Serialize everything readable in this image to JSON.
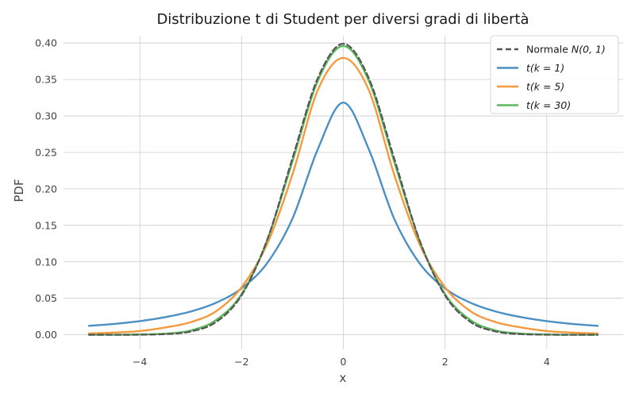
{
  "chart_data": {
    "type": "line",
    "title": "Distribuzione t di Student per diversi gradi di libertà",
    "xlabel": "x",
    "ylabel": "PDF",
    "xlim": [
      -5.5,
      5.5
    ],
    "ylim": [
      -0.02,
      0.41
    ],
    "x_ticks": [
      -4,
      -2,
      0,
      2,
      4
    ],
    "x_tick_labels": [
      "−4",
      "−2",
      "0",
      "2",
      "4"
    ],
    "y_ticks": [
      0.0,
      0.05,
      0.1,
      0.15,
      0.2,
      0.25,
      0.3,
      0.35,
      0.4
    ],
    "y_tick_labels": [
      "0.00",
      "0.05",
      "0.10",
      "0.15",
      "0.20",
      "0.25",
      "0.30",
      "0.35",
      "0.40"
    ],
    "grid": true,
    "legend_position": "top-right",
    "x": [
      -5,
      -4.5,
      -4,
      -3.5,
      -3,
      -2.5,
      -2,
      -1.5,
      -1,
      -0.5,
      0,
      0.5,
      1,
      1.5,
      2,
      2.5,
      3,
      3.5,
      4,
      4.5,
      5
    ],
    "series": [
      {
        "name": "Normale N(0, 1)",
        "legend_prefix": "Normale ",
        "legend_math": "N(0, 1)",
        "color": "#555555",
        "dash": true,
        "values": [
          1.5e-06,
          1.6e-05,
          0.000134,
          0.000873,
          0.004432,
          0.017528,
          0.053991,
          0.129518,
          0.241971,
          0.352065,
          0.398942,
          0.352065,
          0.241971,
          0.129518,
          0.053991,
          0.017528,
          0.004432,
          0.000873,
          0.000134,
          1.6e-05,
          1.5e-06
        ]
      },
      {
        "name": "t(k = 1)",
        "legend_prefix": "",
        "legend_math": "t(k = 1)",
        "color": "#4a90c2",
        "dash": false,
        "values": [
          0.012243,
          0.014909,
          0.018724,
          0.024157,
          0.031831,
          0.043905,
          0.063662,
          0.097942,
          0.159155,
          0.254648,
          0.31831,
          0.254648,
          0.159155,
          0.097942,
          0.063662,
          0.043905,
          0.031831,
          0.024157,
          0.018724,
          0.014909,
          0.012243
        ]
      },
      {
        "name": "t(k = 5)",
        "legend_prefix": "",
        "legend_math": "t(k = 5)",
        "color": "#f5993d",
        "dash": false,
        "values": [
          0.001758,
          0.003064,
          0.005124,
          0.009983,
          0.017292,
          0.032287,
          0.06509,
          0.124016,
          0.219711,
          0.335652,
          0.379607,
          0.335652,
          0.219711,
          0.124016,
          0.06509,
          0.032287,
          0.017292,
          0.009983,
          0.005124,
          0.003064,
          0.001758
        ]
      },
      {
        "name": "t(k = 30)",
        "legend_prefix": "",
        "legend_math": "t(k = 30)",
        "color": "#5cb85c",
        "dash": false,
        "values": [
          2.5e-05,
          8.5e-05,
          0.000412,
          0.001525,
          0.00583,
          0.020137,
          0.055774,
          0.12886,
          0.23764,
          0.3483,
          0.39587,
          0.3483,
          0.23764,
          0.12886,
          0.055774,
          0.020137,
          0.00583,
          0.001525,
          0.000412,
          8.5e-05,
          2.5e-05
        ]
      }
    ]
  }
}
